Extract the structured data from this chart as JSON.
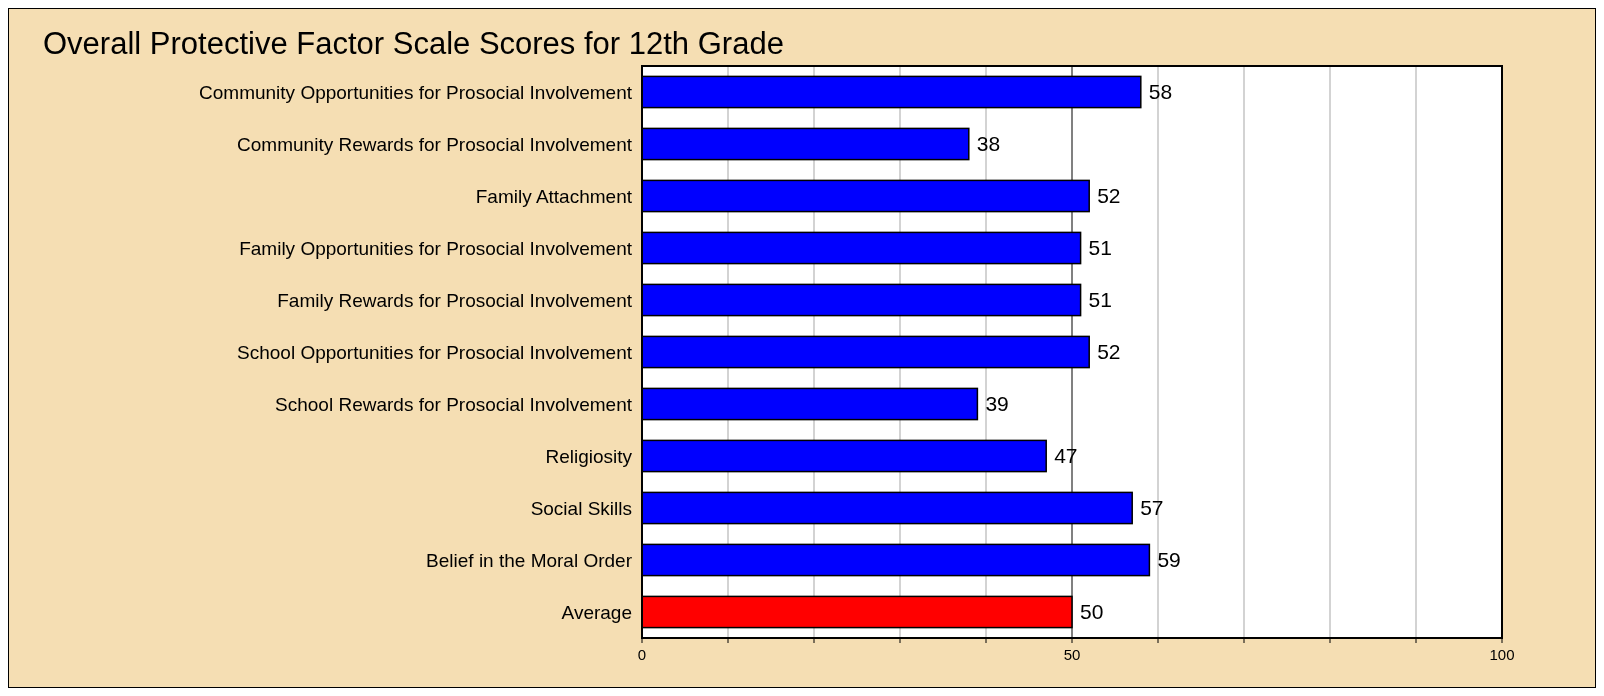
{
  "chart_data": {
    "type": "bar",
    "orientation": "horizontal",
    "title": "Overall Protective Factor Scale Scores for 12th Grade",
    "categories": [
      "Community Opportunities for Prosocial Involvement",
      "Community Rewards for Prosocial Involvement",
      "Family Attachment",
      "Family Opportunities for Prosocial Involvement",
      "Family Rewards for Prosocial Involvement",
      "School Opportunities for Prosocial Involvement",
      "School Rewards for Prosocial Involvement",
      "Religiosity",
      "Social Skills",
      "Belief in the Moral Order",
      "Average"
    ],
    "values": [
      58,
      38,
      52,
      51,
      51,
      52,
      39,
      47,
      57,
      59,
      50
    ],
    "colors": [
      "#0000ff",
      "#0000ff",
      "#0000ff",
      "#0000ff",
      "#0000ff",
      "#0000ff",
      "#0000ff",
      "#0000ff",
      "#0000ff",
      "#0000ff",
      "#ff0000"
    ],
    "data_labels": true,
    "xlim": [
      0,
      100
    ],
    "xticks": [
      0,
      {
        "value": 10,
        "label": null
      },
      {
        "value": 20,
        "label": null
      },
      {
        "value": 30,
        "label": null
      },
      {
        "value": 40,
        "label": null
      },
      50,
      {
        "value": 60,
        "label": null
      },
      {
        "value": 70,
        "label": null
      },
      {
        "value": 80,
        "label": null
      },
      {
        "value": 90,
        "label": null
      },
      100
    ],
    "grid": "x",
    "ref_lines": [
      {
        "axis": "x",
        "value": 50,
        "color": "#808080"
      }
    ]
  }
}
